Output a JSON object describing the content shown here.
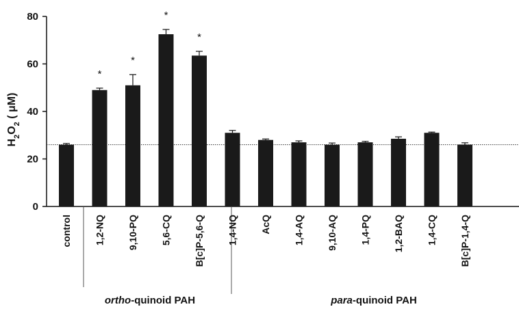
{
  "chart_data": {
    "type": "bar",
    "categories": [
      "control",
      "1,2-NQ",
      "9,10-PQ",
      "5,6-CQ",
      "B[c]P-5,6-Q",
      "1,4-NQ",
      "AcQ",
      "1,4-AQ",
      "9,10-AQ",
      "1,4-PQ",
      "1,2-BAQ",
      "1,4-CQ",
      "B[c]P-1,4-Q"
    ],
    "values": [
      26,
      49,
      51,
      72.5,
      63.5,
      31,
      28,
      27,
      26,
      27,
      28.5,
      31,
      26
    ],
    "errors": [
      0.5,
      0.8,
      4.5,
      2.0,
      1.8,
      1.0,
      0.4,
      0.6,
      0.7,
      0.4,
      0.8,
      0.3,
      0.8
    ],
    "significant": [
      false,
      true,
      true,
      true,
      true,
      false,
      false,
      false,
      false,
      false,
      false,
      false,
      false
    ],
    "significance_marker": "*",
    "ylabel_main": "H",
    "ylabel_sub": "2",
    "ylabel_main2": "O",
    "ylabel_sub2": "2",
    "ylabel_units": " ( μM)",
    "ylim": [
      0,
      80
    ],
    "yticks": [
      0,
      20,
      40,
      60,
      80
    ],
    "reference_line": 26,
    "groups": [
      {
        "label_italic": "ortho",
        "label_rest": "-quinoid PAH",
        "categories": [
          "1,2-NQ",
          "9,10-PQ",
          "5,6-CQ",
          "B[c]P-5,6-Q"
        ]
      },
      {
        "label_italic": "para",
        "label_rest": "-quinoid PAH",
        "categories": [
          "1,4-NQ",
          "AcQ",
          "1,4-AQ",
          "9,10-AQ",
          "1,4-PQ",
          "1,2-BAQ",
          "1,4-CQ",
          "B[c]P-1,4-Q"
        ]
      }
    ],
    "bar_color": "#1a1a1a",
    "grid": false,
    "legend": "none"
  }
}
